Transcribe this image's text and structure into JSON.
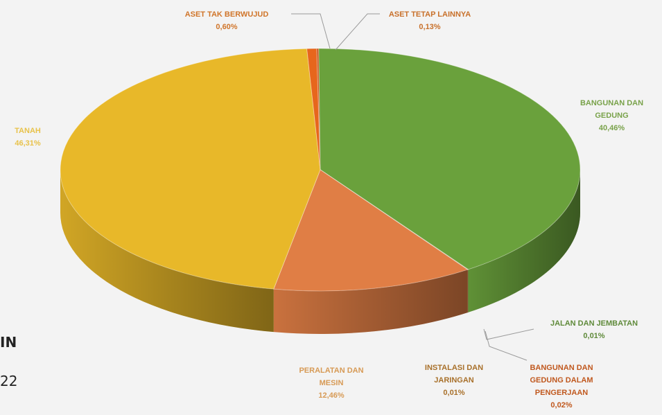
{
  "side_fragments": {
    "line1": "IN",
    "line2": "22"
  },
  "chart_data": {
    "type": "pie",
    "categories": [
      "ASET TETAP LAINNYA",
      "BANGUNAN DAN GEDUNG",
      "JALAN DAN JEMBATAN",
      "BANGUNAN DAN GEDUNG DALAM PENGERJAAN",
      "INSTALASI DAN JARINGAN",
      "PERALATAN DAN MESIN",
      "TANAH",
      "ASET TAK BERWUJUD"
    ],
    "values": [
      0.13,
      40.46,
      0.01,
      0.02,
      0.01,
      12.46,
      46.31,
      0.6
    ],
    "value_labels": [
      "0,13%",
      "40,46%",
      "0,01%",
      "0,02%",
      "0,01%",
      "12,46%",
      "46,31%",
      "0,60%"
    ],
    "colors": [
      "#c8551c",
      "#6aa13c",
      "#2e5e1e",
      "#b5561b",
      "#7a4a16",
      "#e07e45",
      "#e8b829",
      "#e7661c"
    ],
    "label_colors": [
      "#c8702a",
      "#79a24a",
      "#5f8a3a",
      "#c0581e",
      "#a8702a",
      "#d79a55",
      "#e8c24a",
      "#d0752a"
    ],
    "labels": {
      "aset_tak_berwujud": {
        "name": "ASET TAK BERWUJUD",
        "value": "0,60%"
      },
      "aset_tetap_lainnya": {
        "name": "ASET TETAP LAINNYA",
        "value": "0,13%"
      },
      "bangunan_dan_gedung": {
        "line1": "BANGUNAN DAN",
        "line2": "GEDUNG",
        "value": "40,46%"
      },
      "tanah": {
        "name": "TANAH",
        "value": "46,31%"
      },
      "jalan_dan_jembatan": {
        "name": "JALAN DAN JEMBATAN",
        "value": "0,01%"
      },
      "bangunan_dalam_pengerjaan": {
        "line1": "BANGUNAN DAN",
        "line2": "GEDUNG DALAM",
        "line3": "PENGERJAAN",
        "value": "0,02%"
      },
      "instalasi_dan_jaringan": {
        "line1": "INSTALASI DAN",
        "line2": "JARINGAN",
        "value": "0,01%"
      },
      "peralatan_dan_mesin": {
        "line1": "PERALATAN DAN",
        "line2": "MESIN",
        "value": "12,46%"
      }
    }
  }
}
